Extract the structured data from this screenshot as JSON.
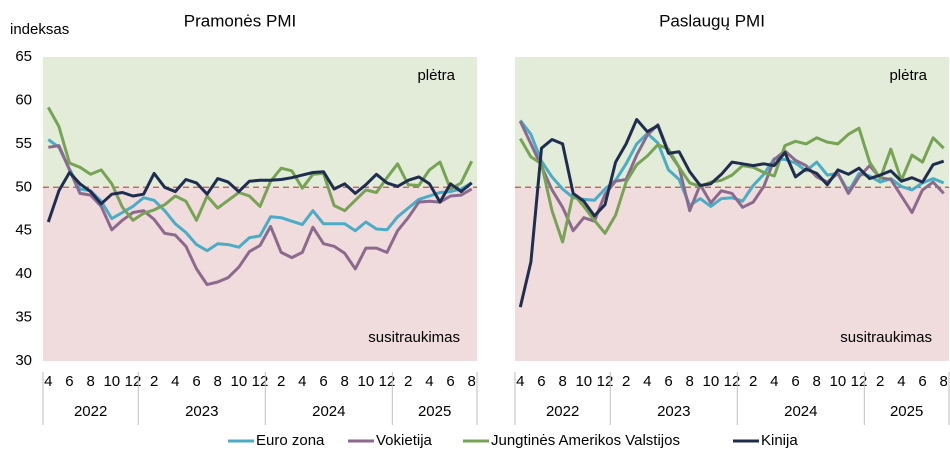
{
  "chart_data": [
    {
      "type": "line",
      "title": "Pramonės PMI",
      "y_label": "indeksas",
      "categories": [
        "4",
        null,
        "6",
        null,
        "8",
        null,
        "10",
        null,
        "12",
        null,
        "2",
        null,
        "4",
        null,
        "6",
        null,
        "8",
        null,
        "10",
        null,
        "12",
        null,
        "2",
        null,
        "4",
        null,
        "6",
        null,
        "8",
        null,
        "10",
        null,
        "12",
        null,
        "2",
        null,
        "4",
        null,
        "6",
        null,
        "8"
      ],
      "years": [
        "2022",
        "2023",
        "2024",
        "2025"
      ],
      "ylim": [
        30,
        65
      ],
      "yticks": [
        30,
        35,
        40,
        45,
        50,
        55,
        60,
        65
      ],
      "threshold": 50,
      "annotations": [
        "plėtra",
        "susitraukimas"
      ],
      "series": [
        {
          "name": "Euro zona",
          "color": "#4bacc6",
          "values": [
            55.5,
            54.6,
            52.1,
            49.8,
            49.6,
            48.4,
            46.4,
            47.1,
            47.8,
            48.8,
            48.5,
            47.3,
            45.8,
            44.8,
            43.4,
            42.7,
            43.5,
            43.4,
            43.1,
            44.2,
            44.4,
            46.6,
            46.5,
            46.1,
            45.7,
            47.3,
            45.8,
            45.8,
            45.8,
            45.0,
            46.0,
            45.2,
            45.1,
            46.6,
            47.6,
            48.6,
            49.0,
            49.4,
            49.5,
            49.8,
            50.5
          ]
        },
        {
          "name": "Vokietija",
          "color": "#8c6a8e",
          "values": [
            54.6,
            54.8,
            52.0,
            49.3,
            49.1,
            47.8,
            45.1,
            46.2,
            47.1,
            47.3,
            46.3,
            44.7,
            44.5,
            43.2,
            40.6,
            38.8,
            39.1,
            39.6,
            40.8,
            42.6,
            43.3,
            45.5,
            42.5,
            41.9,
            42.5,
            45.4,
            43.5,
            43.2,
            42.4,
            40.6,
            43.0,
            43.0,
            42.5,
            45.0,
            46.5,
            48.3,
            48.4,
            48.3,
            49.0,
            49.1,
            49.8
          ]
        },
        {
          "name": "Jungtinės Amerikos Valstijos",
          "color": "#77a355",
          "values": [
            59.2,
            57.0,
            52.8,
            52.3,
            51.5,
            52.0,
            50.4,
            47.7,
            46.2,
            47.0,
            47.4,
            48.0,
            49.0,
            48.4,
            46.2,
            49.0,
            47.6,
            48.5,
            49.4,
            49.0,
            47.8,
            50.7,
            52.2,
            51.9,
            49.9,
            51.5,
            51.6,
            47.9,
            47.3,
            48.5,
            49.7,
            49.4,
            51.1,
            52.7,
            50.3,
            50.2,
            52.0,
            52.9,
            49.8,
            50.5,
            53.0
          ]
        },
        {
          "name": "Kinija",
          "color": "#1f2d4f",
          "values": [
            46.0,
            49.6,
            51.7,
            50.4,
            49.5,
            48.1,
            49.2,
            49.4,
            49.0,
            49.2,
            51.6,
            50.0,
            49.5,
            50.9,
            50.5,
            49.2,
            51.0,
            50.6,
            49.5,
            50.7,
            50.8,
            50.8,
            50.9,
            51.1,
            51.4,
            51.7,
            51.8,
            49.8,
            50.4,
            49.3,
            50.3,
            51.5,
            50.5,
            50.1,
            50.8,
            51.2,
            50.4,
            48.3,
            50.4,
            49.5,
            50.5
          ]
        }
      ]
    },
    {
      "type": "line",
      "title": "Paslaugų PMI",
      "categories": [
        "4",
        null,
        "6",
        null,
        "8",
        null,
        "10",
        null,
        "12",
        null,
        "2",
        null,
        "4",
        null,
        "6",
        null,
        "8",
        null,
        "10",
        null,
        "12",
        null,
        "2",
        null,
        "4",
        null,
        "6",
        null,
        "8",
        null,
        "10",
        null,
        "12",
        null,
        "2",
        null,
        "4",
        null,
        "6",
        null,
        "8"
      ],
      "years": [
        "2022",
        "2023",
        "2024",
        "2025"
      ],
      "ylim": [
        30,
        65
      ],
      "threshold": 50,
      "annotations": [
        "plėtra",
        "susitraukimas"
      ],
      "series": [
        {
          "name": "Euro zona",
          "color": "#4bacc6",
          "values": [
            57.7,
            56.1,
            53.0,
            51.2,
            49.8,
            48.8,
            48.6,
            48.5,
            49.8,
            50.8,
            52.7,
            55.0,
            56.2,
            55.1,
            52.0,
            50.9,
            47.9,
            48.7,
            47.8,
            48.7,
            48.8,
            48.4,
            50.2,
            51.5,
            53.3,
            53.2,
            52.8,
            51.9,
            52.9,
            51.4,
            51.6,
            49.5,
            51.6,
            51.3,
            50.6,
            51.0,
            50.1,
            49.7,
            50.5,
            51.0,
            50.5
          ]
        },
        {
          "name": "Vokietija",
          "color": "#8c6a8e",
          "values": [
            57.6,
            55.0,
            52.4,
            49.7,
            47.7,
            45.0,
            46.5,
            46.1,
            49.2,
            50.7,
            50.9,
            53.7,
            56.0,
            57.2,
            54.1,
            52.3,
            47.3,
            50.3,
            48.2,
            49.6,
            49.3,
            47.7,
            48.3,
            50.1,
            53.2,
            54.2,
            53.1,
            52.5,
            51.2,
            50.6,
            51.6,
            49.3,
            51.2,
            52.5,
            51.1,
            50.9,
            49.0,
            47.1,
            49.7,
            50.6,
            49.3
          ]
        },
        {
          "name": "Jungtinės Amerikos Valstijos",
          "color": "#77a355",
          "values": [
            55.6,
            53.5,
            52.7,
            47.3,
            43.7,
            49.3,
            47.8,
            46.2,
            44.7,
            46.8,
            50.6,
            52.6,
            53.6,
            54.9,
            54.4,
            52.3,
            50.5,
            50.1,
            50.6,
            50.8,
            51.4,
            52.5,
            52.3,
            51.7,
            51.3,
            54.8,
            55.3,
            55.0,
            55.7,
            55.2,
            55.0,
            56.1,
            56.8,
            52.9,
            51.0,
            54.4,
            50.8,
            53.7,
            52.9,
            55.7,
            54.5
          ]
        },
        {
          "name": "Kinija",
          "color": "#1f2d4f",
          "values": [
            36.2,
            41.4,
            54.5,
            55.5,
            55.0,
            49.3,
            48.4,
            46.7,
            48.0,
            52.9,
            55.0,
            57.8,
            56.4,
            57.1,
            53.9,
            54.1,
            51.8,
            50.2,
            50.4,
            51.5,
            52.9,
            52.7,
            52.5,
            52.7,
            52.5,
            54.0,
            51.2,
            52.1,
            51.6,
            50.3,
            52.0,
            51.5,
            52.2,
            51.0,
            51.4,
            51.9,
            50.7,
            51.1,
            50.6,
            52.6,
            53.0
          ]
        }
      ]
    }
  ]
}
